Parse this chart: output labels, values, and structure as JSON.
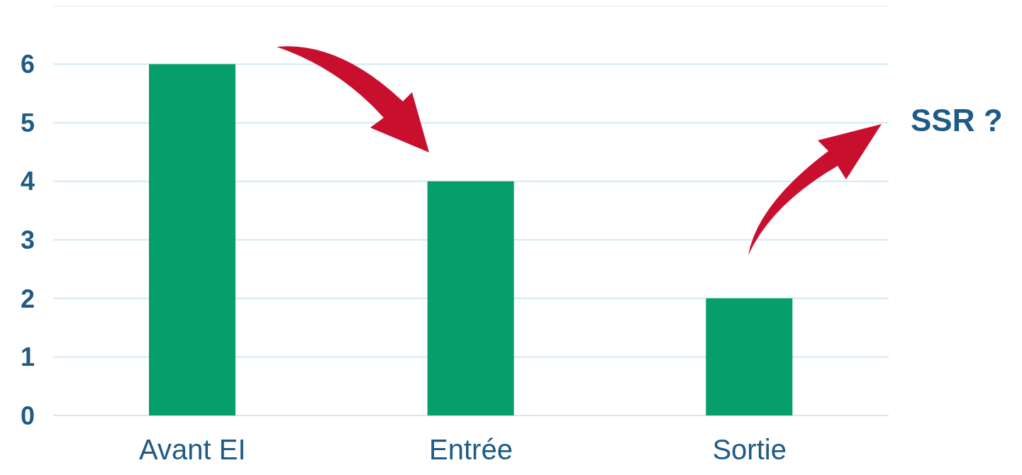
{
  "chart_data": {
    "type": "bar",
    "categories": [
      "Avant EI",
      "Entrée",
      "Sortie"
    ],
    "values": [
      6,
      4,
      2
    ],
    "color": "#069e6a",
    "ylim": [
      0,
      7
    ],
    "yticks": [
      0,
      1,
      2,
      3,
      4,
      5,
      6,
      {
        "value": 7,
        "label": null
      }
    ],
    "grid": "y",
    "annotations": [
      "SSR ?"
    ]
  }
}
